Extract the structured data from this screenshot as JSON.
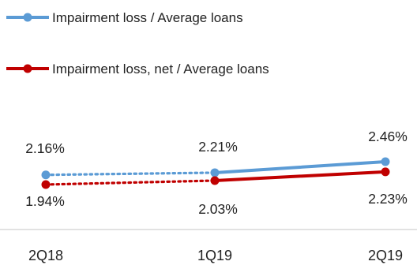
{
  "chart_data": {
    "type": "line",
    "categories": [
      "2Q18",
      "1Q19",
      "2Q19"
    ],
    "series": [
      {
        "name": "Impairment loss / Average loans",
        "values": [
          2.16,
          2.21,
          2.46
        ],
        "labels": [
          "2.16%",
          "2.21%",
          "2.46%"
        ],
        "color": "#5B9BD5",
        "dotted_segment": "2Q18-1Q19"
      },
      {
        "name": "Impairment loss, net  / Average loans",
        "values": [
          1.94,
          2.03,
          2.23
        ],
        "labels": [
          "1.94%",
          "2.03%",
          "2.23%"
        ],
        "color": "#C00000",
        "dotted_segment": "2Q18-1Q19"
      }
    ],
    "legend_position": "top-left",
    "grid": false,
    "y_axis_visible": false
  }
}
